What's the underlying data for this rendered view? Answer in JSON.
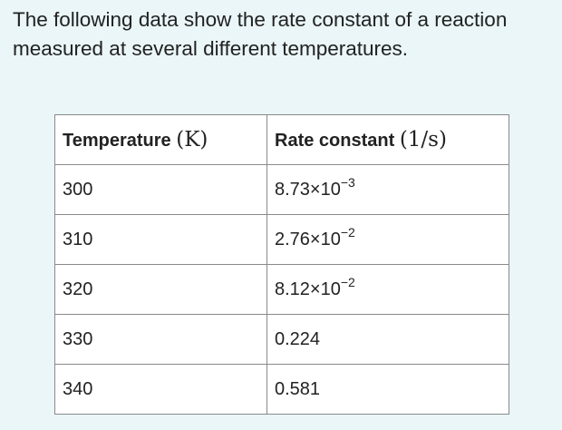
{
  "intro_text": "The following data show the rate constant of a reaction measured at several different temperatures.",
  "table": {
    "headers": [
      {
        "label": "Temperature",
        "unit": "(K)"
      },
      {
        "label": "Rate constant",
        "unit": "(1/s)"
      }
    ],
    "rows": [
      {
        "temperature": "300",
        "rate_base": "8.73×10",
        "rate_exp": "−3"
      },
      {
        "temperature": "310",
        "rate_base": "2.76×10",
        "rate_exp": "−2"
      },
      {
        "temperature": "320",
        "rate_base": "8.12×10",
        "rate_exp": "−2"
      },
      {
        "temperature": "330",
        "rate_base": "0.224",
        "rate_exp": ""
      },
      {
        "temperature": "340",
        "rate_base": "0.581",
        "rate_exp": ""
      }
    ]
  }
}
